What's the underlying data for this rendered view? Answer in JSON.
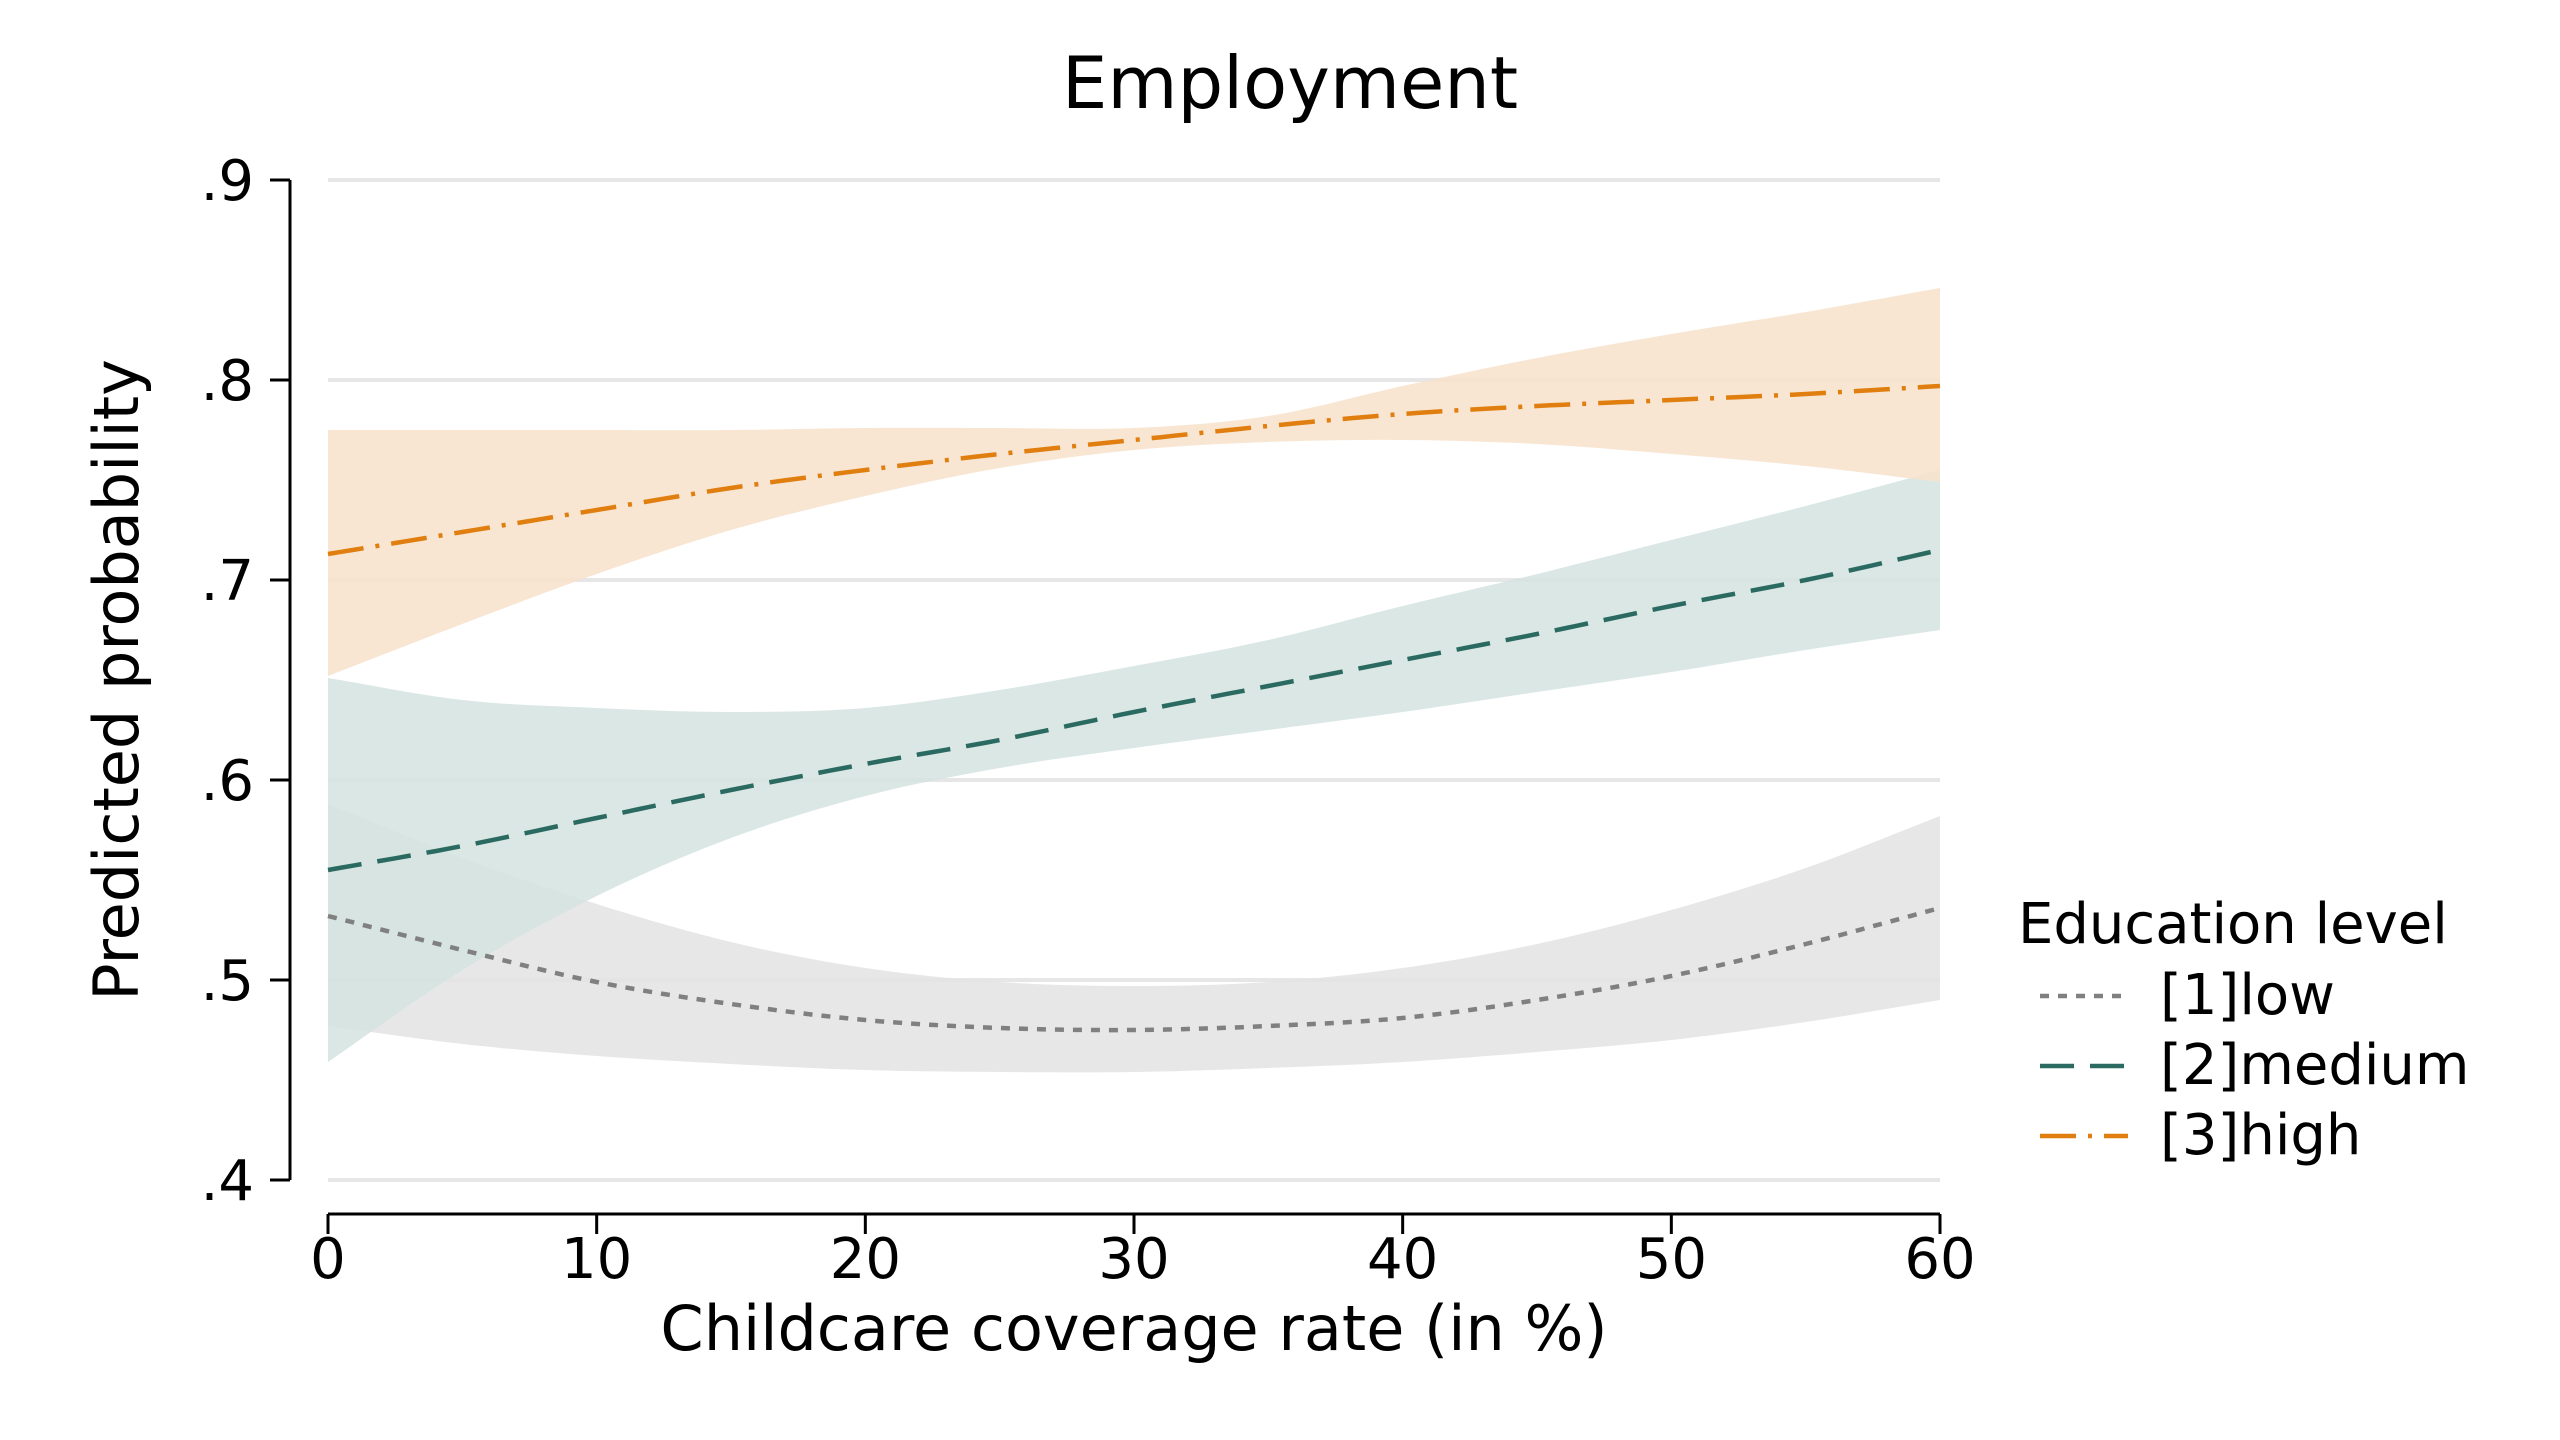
{
  "chart_data": {
    "type": "line",
    "title": "Employment",
    "xlabel": "Childcare coverage rate (in %)",
    "ylabel": "Predicted probability",
    "xlim": [
      0,
      60
    ],
    "ylim": [
      0.4,
      0.9
    ],
    "xticks": [
      0,
      10,
      20,
      30,
      40,
      50,
      60
    ],
    "xtick_labels": [
      "0",
      "10",
      "20",
      "30",
      "40",
      "50",
      "60"
    ],
    "yticks": [
      0.4,
      0.5,
      0.6,
      0.7,
      0.8,
      0.9
    ],
    "ytick_labels": [
      ".4",
      ".5",
      ".6",
      ".7",
      ".8",
      ".9"
    ],
    "grid": "horizontal",
    "legend": {
      "title": "Education level",
      "placement": "right"
    },
    "x": [
      0,
      5,
      10,
      15,
      20,
      25,
      30,
      35,
      40,
      45,
      50,
      55,
      60
    ],
    "series": [
      {
        "name": "[1]low",
        "line_style": "dotted",
        "color": "#808080",
        "band_color": "#e3e3e3",
        "values": [
          0.532,
          0.515,
          0.499,
          0.488,
          0.48,
          0.476,
          0.475,
          0.477,
          0.481,
          0.49,
          0.502,
          0.518,
          0.536
        ],
        "ci_lower": [
          0.477,
          0.468,
          0.462,
          0.458,
          0.455,
          0.454,
          0.454,
          0.456,
          0.459,
          0.464,
          0.47,
          0.479,
          0.49
        ],
        "ci_upper": [
          0.588,
          0.561,
          0.538,
          0.519,
          0.506,
          0.499,
          0.497,
          0.499,
          0.506,
          0.518,
          0.535,
          0.556,
          0.582
        ]
      },
      {
        "name": "[2]medium",
        "line_style": "dashed",
        "color": "#2a6a60",
        "band_color": "#d3e3e0",
        "values": [
          0.555,
          0.567,
          0.581,
          0.595,
          0.608,
          0.62,
          0.634,
          0.647,
          0.66,
          0.673,
          0.687,
          0.7,
          0.715
        ],
        "ci_lower": [
          0.459,
          0.505,
          0.542,
          0.571,
          0.592,
          0.606,
          0.616,
          0.625,
          0.634,
          0.644,
          0.654,
          0.665,
          0.675
        ],
        "ci_upper": [
          0.651,
          0.64,
          0.636,
          0.634,
          0.636,
          0.645,
          0.657,
          0.67,
          0.687,
          0.703,
          0.72,
          0.737,
          0.755
        ]
      },
      {
        "name": "[3]high",
        "line_style": "dash-dot",
        "color": "#e07f10",
        "band_color": "#f7e2cb",
        "values": [
          0.713,
          0.724,
          0.735,
          0.746,
          0.755,
          0.763,
          0.77,
          0.777,
          0.783,
          0.787,
          0.79,
          0.793,
          0.797
        ],
        "ci_lower": [
          0.652,
          0.678,
          0.703,
          0.725,
          0.742,
          0.756,
          0.765,
          0.769,
          0.77,
          0.768,
          0.763,
          0.757,
          0.749
        ],
        "ci_upper": [
          0.775,
          0.775,
          0.775,
          0.775,
          0.776,
          0.776,
          0.776,
          0.782,
          0.797,
          0.811,
          0.823,
          0.834,
          0.846
        ]
      }
    ]
  }
}
